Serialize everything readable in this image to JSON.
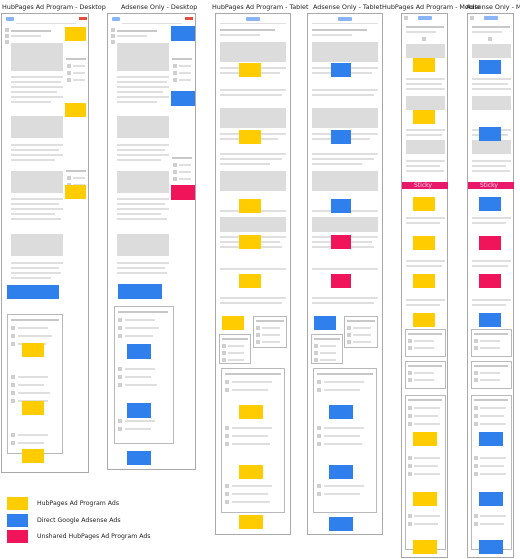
{
  "columns": [
    {
      "title": "HubPages Ad Program - Desktop"
    },
    {
      "title": "Adsense Only - Desktop"
    },
    {
      "title": "HubPages Ad Program - Tablet"
    },
    {
      "title": "Adsense Only - Tablet"
    },
    {
      "title": "HubPages Ad Program - Mobile"
    },
    {
      "title": "Adsense Only - Mobile"
    }
  ],
  "sticky_label": "Sticky",
  "legend": [
    {
      "label": "HubPages Ad Program Ads",
      "color": "#ffcc00"
    },
    {
      "label": "Direct Google Adsense Ads",
      "color": "#2f80ed"
    },
    {
      "label": "Unshared HubPages Ad Program Ads",
      "color": "#f0145a"
    }
  ],
  "colors": {
    "hubpages": "#ffcc00",
    "adsense": "#2f80ed",
    "unshared": "#f0145a"
  }
}
